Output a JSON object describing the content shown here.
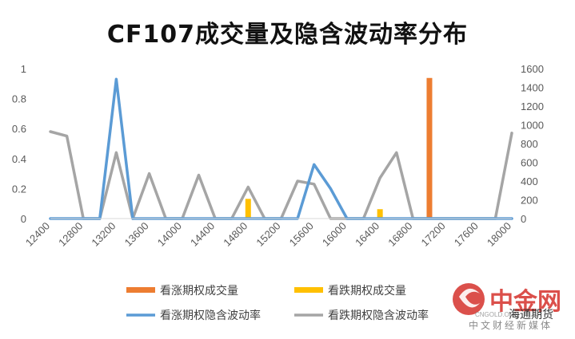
{
  "title": "CF107成交量及隐含波动率分布",
  "chart_data": {
    "type": "bar-line",
    "title": "CF107成交量及隐含波动率分布",
    "x_tick_labels": [
      "12400",
      "12800",
      "13200",
      "13600",
      "14000",
      "14400",
      "14800",
      "15200",
      "15600",
      "16000",
      "16400",
      "16800",
      "17200",
      "17600",
      "18000"
    ],
    "x": [
      12400,
      12600,
      12800,
      13000,
      13200,
      13400,
      13600,
      13800,
      14000,
      14200,
      14400,
      14600,
      14800,
      15000,
      15200,
      15400,
      15600,
      15800,
      16000,
      16200,
      16400,
      16600,
      16800,
      17000,
      17200,
      17400,
      17600,
      17800,
      18000
    ],
    "left_axis": {
      "ylim": [
        0,
        1
      ],
      "ticks": [
        "0",
        "0.2",
        "0.4",
        "0.6",
        "0.8",
        "1"
      ]
    },
    "right_axis": {
      "ylim": [
        0,
        1600
      ],
      "ticks": [
        "0",
        "200",
        "400",
        "600",
        "800",
        "1000",
        "1200",
        "1400",
        "1600"
      ]
    },
    "series": [
      {
        "name": "看涨期权成交量",
        "kind": "bar",
        "axis": "right",
        "color": "#ED7D31",
        "values": [
          0,
          0,
          0,
          0,
          0,
          0,
          0,
          0,
          0,
          0,
          0,
          0,
          0,
          0,
          0,
          0,
          0,
          0,
          0,
          0,
          0,
          0,
          0,
          1500,
          0,
          0,
          0,
          0,
          0
        ]
      },
      {
        "name": "看跌期权成交量",
        "kind": "bar",
        "axis": "right",
        "color": "#FFC000",
        "values": [
          0,
          0,
          0,
          0,
          0,
          0,
          0,
          0,
          0,
          0,
          0,
          0,
          210,
          0,
          0,
          0,
          0,
          0,
          0,
          0,
          100,
          0,
          0,
          0,
          0,
          0,
          0,
          0,
          0
        ]
      },
      {
        "name": "看涨期权隐含波动率",
        "kind": "line",
        "axis": "left",
        "color": "#5B9BD5",
        "values": [
          0,
          0,
          0,
          0,
          0.93,
          0,
          0,
          0,
          0,
          0,
          0,
          0,
          0,
          0,
          0,
          0,
          0.36,
          0.2,
          0,
          0,
          0,
          0,
          0,
          0,
          0,
          0,
          0,
          0,
          0
        ]
      },
      {
        "name": "看跌期权隐含波动率",
        "kind": "line",
        "axis": "left",
        "color": "#A5A5A5",
        "values": [
          0.58,
          0.55,
          0,
          0,
          0.44,
          0,
          0.3,
          0,
          0,
          0.29,
          0,
          0,
          0.21,
          0,
          0,
          0.25,
          0.23,
          0,
          0,
          0,
          0.27,
          0.44,
          0,
          0,
          0,
          0,
          0,
          0,
          0.57
        ]
      }
    ],
    "legend_position": "bottom",
    "grid": false
  },
  "watermark": {
    "logo_text": "中金网",
    "slogan": "中文财经新媒体",
    "source": "海通期货",
    "small_text": "CNGOLD.ORG",
    "colors": {
      "red": "#D5312B",
      "orange": "#E8883A"
    }
  }
}
